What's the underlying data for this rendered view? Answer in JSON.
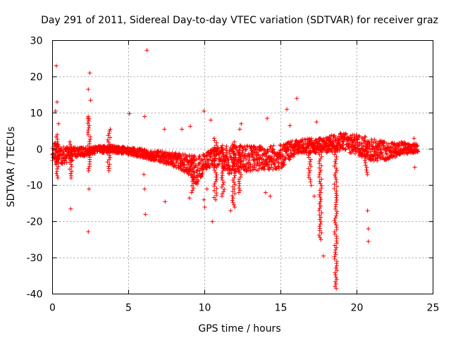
{
  "chart_data": {
    "type": "scatter",
    "title": "Day 291 of 2011, Sidereal Day-to-day VTEC variation (SDTVAR) for receiver graz",
    "xlabel": "GPS time / hours",
    "ylabel": "SDTVAR / TECUs",
    "xlim": [
      0,
      25
    ],
    "ylim": [
      -40,
      30
    ],
    "xticks": [
      0,
      5,
      10,
      15,
      20,
      25
    ],
    "yticks": [
      30,
      20,
      10,
      0,
      -10,
      -20,
      -30,
      -40
    ],
    "grid": true,
    "marker": "+",
    "series_color": "#ff0000",
    "band": {
      "x": [
        0,
        0.5,
        1,
        1.5,
        2,
        2.5,
        3,
        4,
        5,
        6,
        7,
        8,
        9,
        9.5,
        10,
        10.5,
        11,
        11.5,
        12,
        13,
        14,
        15,
        15.5,
        16,
        17,
        17.5,
        18,
        18.5,
        19,
        20,
        20.5,
        21,
        22,
        23,
        24
      ],
      "lower": [
        -4,
        -4,
        -4,
        -2.5,
        -2,
        -1.5,
        -1,
        -1,
        -1.5,
        -2.5,
        -3.5,
        -5,
        -7.5,
        -10,
        -6,
        -4.5,
        -5.5,
        -7,
        -6.5,
        -6,
        -6,
        -5.5,
        -3.5,
        -1.5,
        -1,
        -1,
        -1,
        -1,
        -0.5,
        -1.5,
        -2.5,
        -3.5,
        -3,
        -1.5,
        -1
      ],
      "upper": [
        2,
        1.5,
        0.5,
        0.5,
        0.5,
        0.5,
        1,
        1,
        0.5,
        0,
        -0.5,
        -1,
        -1.5,
        -2,
        -1,
        0,
        0.5,
        1,
        1,
        1,
        1,
        1.5,
        2,
        2.5,
        3,
        3,
        3.5,
        4,
        4.5,
        4,
        3.5,
        3,
        2,
        2,
        1.5
      ]
    },
    "dips": [
      {
        "x": 0.3,
        "y_min": -8,
        "y_max": 4
      },
      {
        "x": 1.2,
        "y_min": -8,
        "y_max": 2
      },
      {
        "x": 2.4,
        "y_min": -6,
        "y_max": 9
      },
      {
        "x": 3.7,
        "y_min": -6,
        "y_max": 5
      },
      {
        "x": 9.2,
        "y_min": -12,
        "y_max": -2
      },
      {
        "x": 10.7,
        "y_min": -14,
        "y_max": 3
      },
      {
        "x": 11.2,
        "y_min": -13,
        "y_max": 1
      },
      {
        "x": 11.9,
        "y_min": -16,
        "y_max": 2
      },
      {
        "x": 12.3,
        "y_min": -12,
        "y_max": 1
      },
      {
        "x": 16.9,
        "y_min": -9,
        "y_max": 2
      },
      {
        "x": 17.6,
        "y_min": -25,
        "y_max": 1
      },
      {
        "x": 18.6,
        "y_min": -38.5,
        "y_max": 1
      },
      {
        "x": 20.6,
        "y_min": -7,
        "y_max": 2
      }
    ],
    "outliers": [
      {
        "x": 0.25,
        "y": 23
      },
      {
        "x": 0.3,
        "y": 13
      },
      {
        "x": 0.2,
        "y": 10.5
      },
      {
        "x": 0.4,
        "y": 7
      },
      {
        "x": 1.2,
        "y": -16.5
      },
      {
        "x": 2.35,
        "y": 16.5
      },
      {
        "x": 2.45,
        "y": 21
      },
      {
        "x": 2.5,
        "y": 13.5
      },
      {
        "x": 2.3,
        "y": 8.5
      },
      {
        "x": 2.4,
        "y": -11
      },
      {
        "x": 2.35,
        "y": -22.8
      },
      {
        "x": 3.8,
        "y": 5.5
      },
      {
        "x": 5.05,
        "y": 9.8
      },
      {
        "x": 6.2,
        "y": 27.3
      },
      {
        "x": 6.05,
        "y": 9
      },
      {
        "x": 6.1,
        "y": -18
      },
      {
        "x": 6.05,
        "y": -11
      },
      {
        "x": 6.0,
        "y": -7
      },
      {
        "x": 7.35,
        "y": 5.5
      },
      {
        "x": 7.4,
        "y": -14.5
      },
      {
        "x": 8.5,
        "y": 5.5
      },
      {
        "x": 9.05,
        "y": 6.3
      },
      {
        "x": 9.0,
        "y": -13.5
      },
      {
        "x": 9.95,
        "y": 10.5
      },
      {
        "x": 9.95,
        "y": -14
      },
      {
        "x": 10.0,
        "y": -16
      },
      {
        "x": 10.15,
        "y": -11
      },
      {
        "x": 10.4,
        "y": 8
      },
      {
        "x": 10.5,
        "y": -20
      },
      {
        "x": 11.7,
        "y": -17
      },
      {
        "x": 12.4,
        "y": 7
      },
      {
        "x": 12.3,
        "y": 5.5
      },
      {
        "x": 14.1,
        "y": 8.5
      },
      {
        "x": 14.0,
        "y": -12
      },
      {
        "x": 14.3,
        "y": -13
      },
      {
        "x": 15.4,
        "y": 11
      },
      {
        "x": 15.6,
        "y": 6.5
      },
      {
        "x": 16.05,
        "y": 14
      },
      {
        "x": 17.0,
        "y": -10
      },
      {
        "x": 17.2,
        "y": -13
      },
      {
        "x": 17.35,
        "y": 7.5
      },
      {
        "x": 17.8,
        "y": -29.5
      },
      {
        "x": 20.7,
        "y": -17
      },
      {
        "x": 20.75,
        "y": -22
      },
      {
        "x": 20.75,
        "y": -25.5
      },
      {
        "x": 23.75,
        "y": 3
      },
      {
        "x": 23.8,
        "y": -5
      }
    ]
  }
}
